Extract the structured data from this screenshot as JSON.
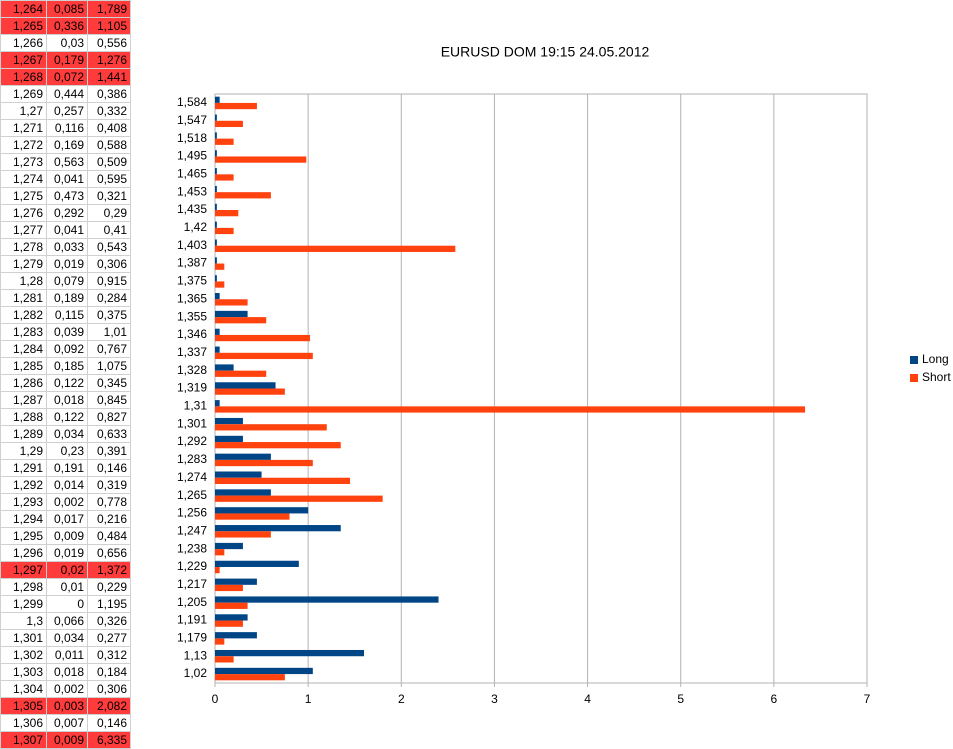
{
  "table": {
    "rows": [
      [
        "1,264",
        "0,085",
        "1,789"
      ],
      [
        "1,265",
        "0,336",
        "1,105"
      ],
      [
        "1,266",
        "0,03",
        "0,556"
      ],
      [
        "1,267",
        "0,179",
        "1,276"
      ],
      [
        "1,268",
        "0,072",
        "1,441"
      ],
      [
        "1,269",
        "0,444",
        "0,386"
      ],
      [
        "1,27",
        "0,257",
        "0,332"
      ],
      [
        "1,271",
        "0,116",
        "0,408"
      ],
      [
        "1,272",
        "0,169",
        "0,588"
      ],
      [
        "1,273",
        "0,563",
        "0,509"
      ],
      [
        "1,274",
        "0,041",
        "0,595"
      ],
      [
        "1,275",
        "0,473",
        "0,321"
      ],
      [
        "1,276",
        "0,292",
        "0,29"
      ],
      [
        "1,277",
        "0,041",
        "0,41"
      ],
      [
        "1,278",
        "0,033",
        "0,543"
      ],
      [
        "1,279",
        "0,019",
        "0,306"
      ],
      [
        "1,28",
        "0,079",
        "0,915"
      ],
      [
        "1,281",
        "0,189",
        "0,284"
      ],
      [
        "1,282",
        "0,115",
        "0,375"
      ],
      [
        "1,283",
        "0,039",
        "1,01"
      ],
      [
        "1,284",
        "0,092",
        "0,767"
      ],
      [
        "1,285",
        "0,185",
        "1,075"
      ],
      [
        "1,286",
        "0,122",
        "0,345"
      ],
      [
        "1,287",
        "0,018",
        "0,845"
      ],
      [
        "1,288",
        "0,122",
        "0,827"
      ],
      [
        "1,289",
        "0,034",
        "0,633"
      ],
      [
        "1,29",
        "0,23",
        "0,391"
      ],
      [
        "1,291",
        "0,191",
        "0,146"
      ],
      [
        "1,292",
        "0,014",
        "0,319"
      ],
      [
        "1,293",
        "0,002",
        "0,778"
      ],
      [
        "1,294",
        "0,017",
        "0,216"
      ],
      [
        "1,295",
        "0,009",
        "0,484"
      ],
      [
        "1,296",
        "0,019",
        "0,656"
      ],
      [
        "1,297",
        "0,02",
        "1,372"
      ],
      [
        "1,298",
        "0,01",
        "0,229"
      ],
      [
        "1,299",
        "0",
        "1,195"
      ],
      [
        "1,3",
        "0,066",
        "0,326"
      ],
      [
        "1,301",
        "0,034",
        "0,277"
      ],
      [
        "1,302",
        "0,011",
        "0,312"
      ],
      [
        "1,303",
        "0,018",
        "0,184"
      ],
      [
        "1,304",
        "0,002",
        "0,306"
      ],
      [
        "1,305",
        "0,003",
        "2,082"
      ],
      [
        "1,306",
        "0,007",
        "0,146"
      ],
      [
        "1,307",
        "0,009",
        "6,335"
      ]
    ],
    "highlighted_rows": [
      0,
      1,
      3,
      4,
      33,
      41,
      43
    ],
    "highlight_color": "#ff3b3b"
  },
  "chart_data": {
    "type": "hbar",
    "title": "EURUSD DOM 19:15 24.05.2012",
    "categories": [
      "1,02",
      "1,13",
      "1,179",
      "1,191",
      "1,205",
      "1,217",
      "1,229",
      "1,238",
      "1,247",
      "1,256",
      "1,265",
      "1,274",
      "1,283",
      "1,292",
      "1,301",
      "1,31",
      "1,319",
      "1,328",
      "1,337",
      "1,346",
      "1,355",
      "1,365",
      "1,375",
      "1,387",
      "1,403",
      "1,42",
      "1,435",
      "1,453",
      "1,465",
      "1,495",
      "1,518",
      "1,547",
      "1,584"
    ],
    "series": [
      {
        "name": "Long",
        "color": "#004586",
        "values": [
          1.05,
          1.6,
          0.45,
          0.35,
          2.4,
          0.45,
          0.9,
          0.3,
          1.35,
          1.0,
          0.6,
          0.5,
          0.6,
          0.3,
          0.3,
          0.05,
          0.65,
          0.2,
          0.05,
          0.05,
          0.35,
          0.05,
          0.02,
          0.02,
          0.02,
          0.02,
          0.02,
          0.02,
          0.02,
          0.02,
          0.02,
          0.02,
          0.05
        ]
      },
      {
        "name": "Short",
        "color": "#ff420e",
        "values": [
          0.75,
          0.2,
          0.1,
          0.3,
          0.35,
          0.3,
          0.05,
          0.1,
          0.6,
          0.8,
          1.8,
          1.45,
          1.05,
          1.35,
          1.2,
          6.335,
          0.75,
          0.55,
          1.05,
          1.02,
          0.55,
          0.35,
          0.1,
          0.1,
          2.58,
          0.2,
          0.25,
          0.6,
          0.2,
          0.98,
          0.2,
          0.3,
          0.45
        ]
      }
    ],
    "xlim": [
      0,
      7
    ],
    "xticks": [
      0,
      1,
      2,
      3,
      4,
      5,
      6,
      7
    ],
    "grid": true,
    "legend": "right"
  }
}
